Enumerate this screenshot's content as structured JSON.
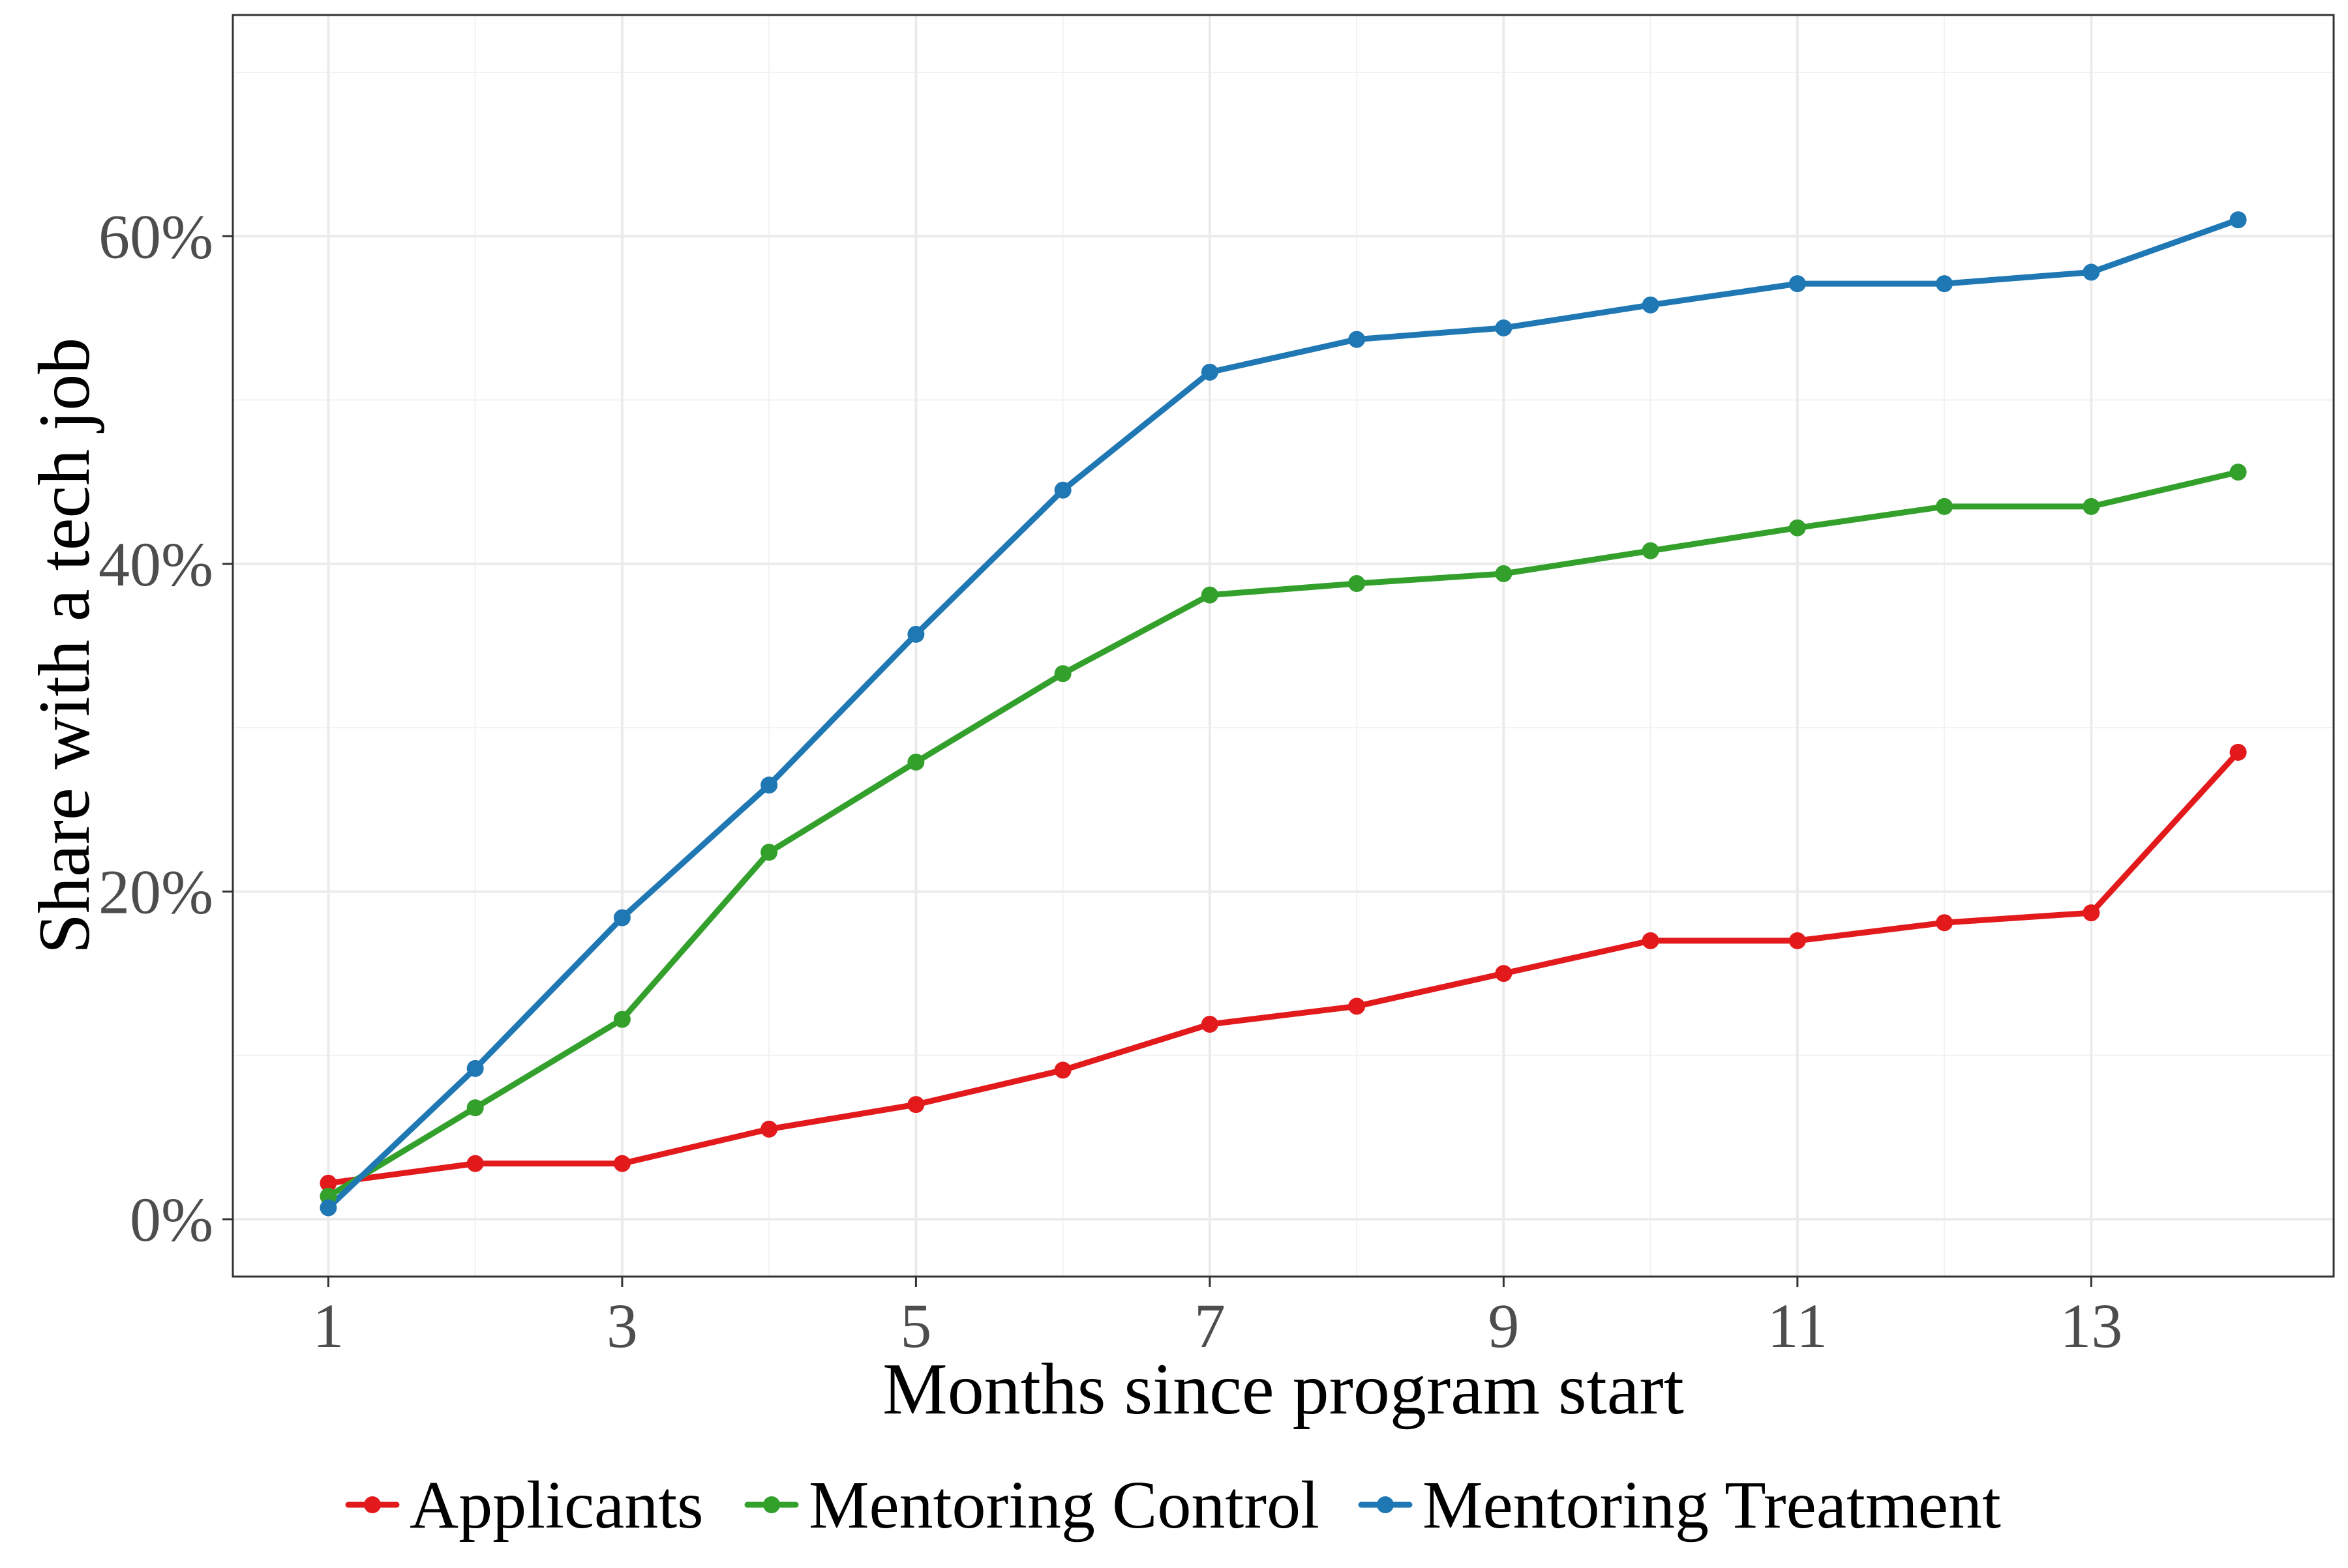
{
  "chart_data": {
    "type": "line",
    "title": "",
    "xlabel": "Months since program start",
    "ylabel": "Share with a tech job",
    "x": [
      1,
      2,
      3,
      4,
      5,
      6,
      7,
      8,
      9,
      10,
      11,
      12,
      13,
      14
    ],
    "xticks": [
      1,
      3,
      5,
      7,
      9,
      11,
      13
    ],
    "xtick_labels": [
      "1",
      "3",
      "5",
      "7",
      "9",
      "11",
      "13"
    ],
    "xlim": [
      0.35,
      14.65
    ],
    "yticks": [
      0,
      20,
      40,
      60
    ],
    "ytick_labels": [
      "0%",
      "20%",
      "40%",
      "60%"
    ],
    "ylim": [
      -3.5,
      73.5
    ],
    "grid": true,
    "legend_position": "bottom",
    "series": [
      {
        "name": "Applicants",
        "color": "#e31a1c",
        "values": [
          2.2,
          3.4,
          3.4,
          5.5,
          7.0,
          9.1,
          11.9,
          13.0,
          15.0,
          17.0,
          17.0,
          18.1,
          18.7,
          28.5
        ]
      },
      {
        "name": "Mentoring Control",
        "color": "#33a02c",
        "values": [
          1.4,
          6.8,
          12.2,
          22.4,
          27.9,
          33.3,
          38.1,
          38.8,
          39.4,
          40.8,
          42.2,
          43.5,
          43.5,
          45.6
        ]
      },
      {
        "name": "Mentoring Treatment",
        "color": "#1f78b4",
        "values": [
          0.7,
          9.2,
          18.4,
          26.5,
          35.7,
          44.5,
          51.7,
          53.7,
          54.4,
          55.8,
          57.1,
          57.1,
          57.8,
          61.0
        ]
      }
    ]
  }
}
